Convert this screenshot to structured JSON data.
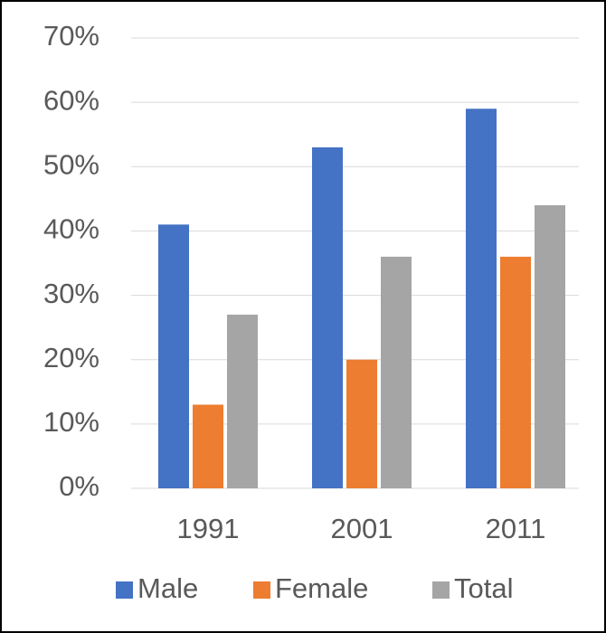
{
  "chart_data": {
    "type": "bar",
    "categories": [
      "1991",
      "2001",
      "2011"
    ],
    "series": [
      {
        "name": "Male",
        "color": "#4472c4",
        "values": [
          41,
          53,
          59
        ]
      },
      {
        "name": "Female",
        "color": "#ed7d31",
        "values": [
          13,
          20,
          36
        ]
      },
      {
        "name": "Total",
        "color": "#a5a5a5",
        "values": [
          27,
          36,
          44
        ]
      }
    ],
    "ylim": [
      0,
      70
    ],
    "yticks": [
      {
        "value": 0,
        "label": "0%"
      },
      {
        "value": 10,
        "label": "10%"
      },
      {
        "value": 20,
        "label": "20%"
      },
      {
        "value": 30,
        "label": "30%"
      },
      {
        "value": 40,
        "label": "40%"
      },
      {
        "value": 50,
        "label": "50%"
      },
      {
        "value": 60,
        "label": "60%"
      },
      {
        "value": 70,
        "label": "70%"
      }
    ],
    "grid": true,
    "legend": "bottom"
  }
}
